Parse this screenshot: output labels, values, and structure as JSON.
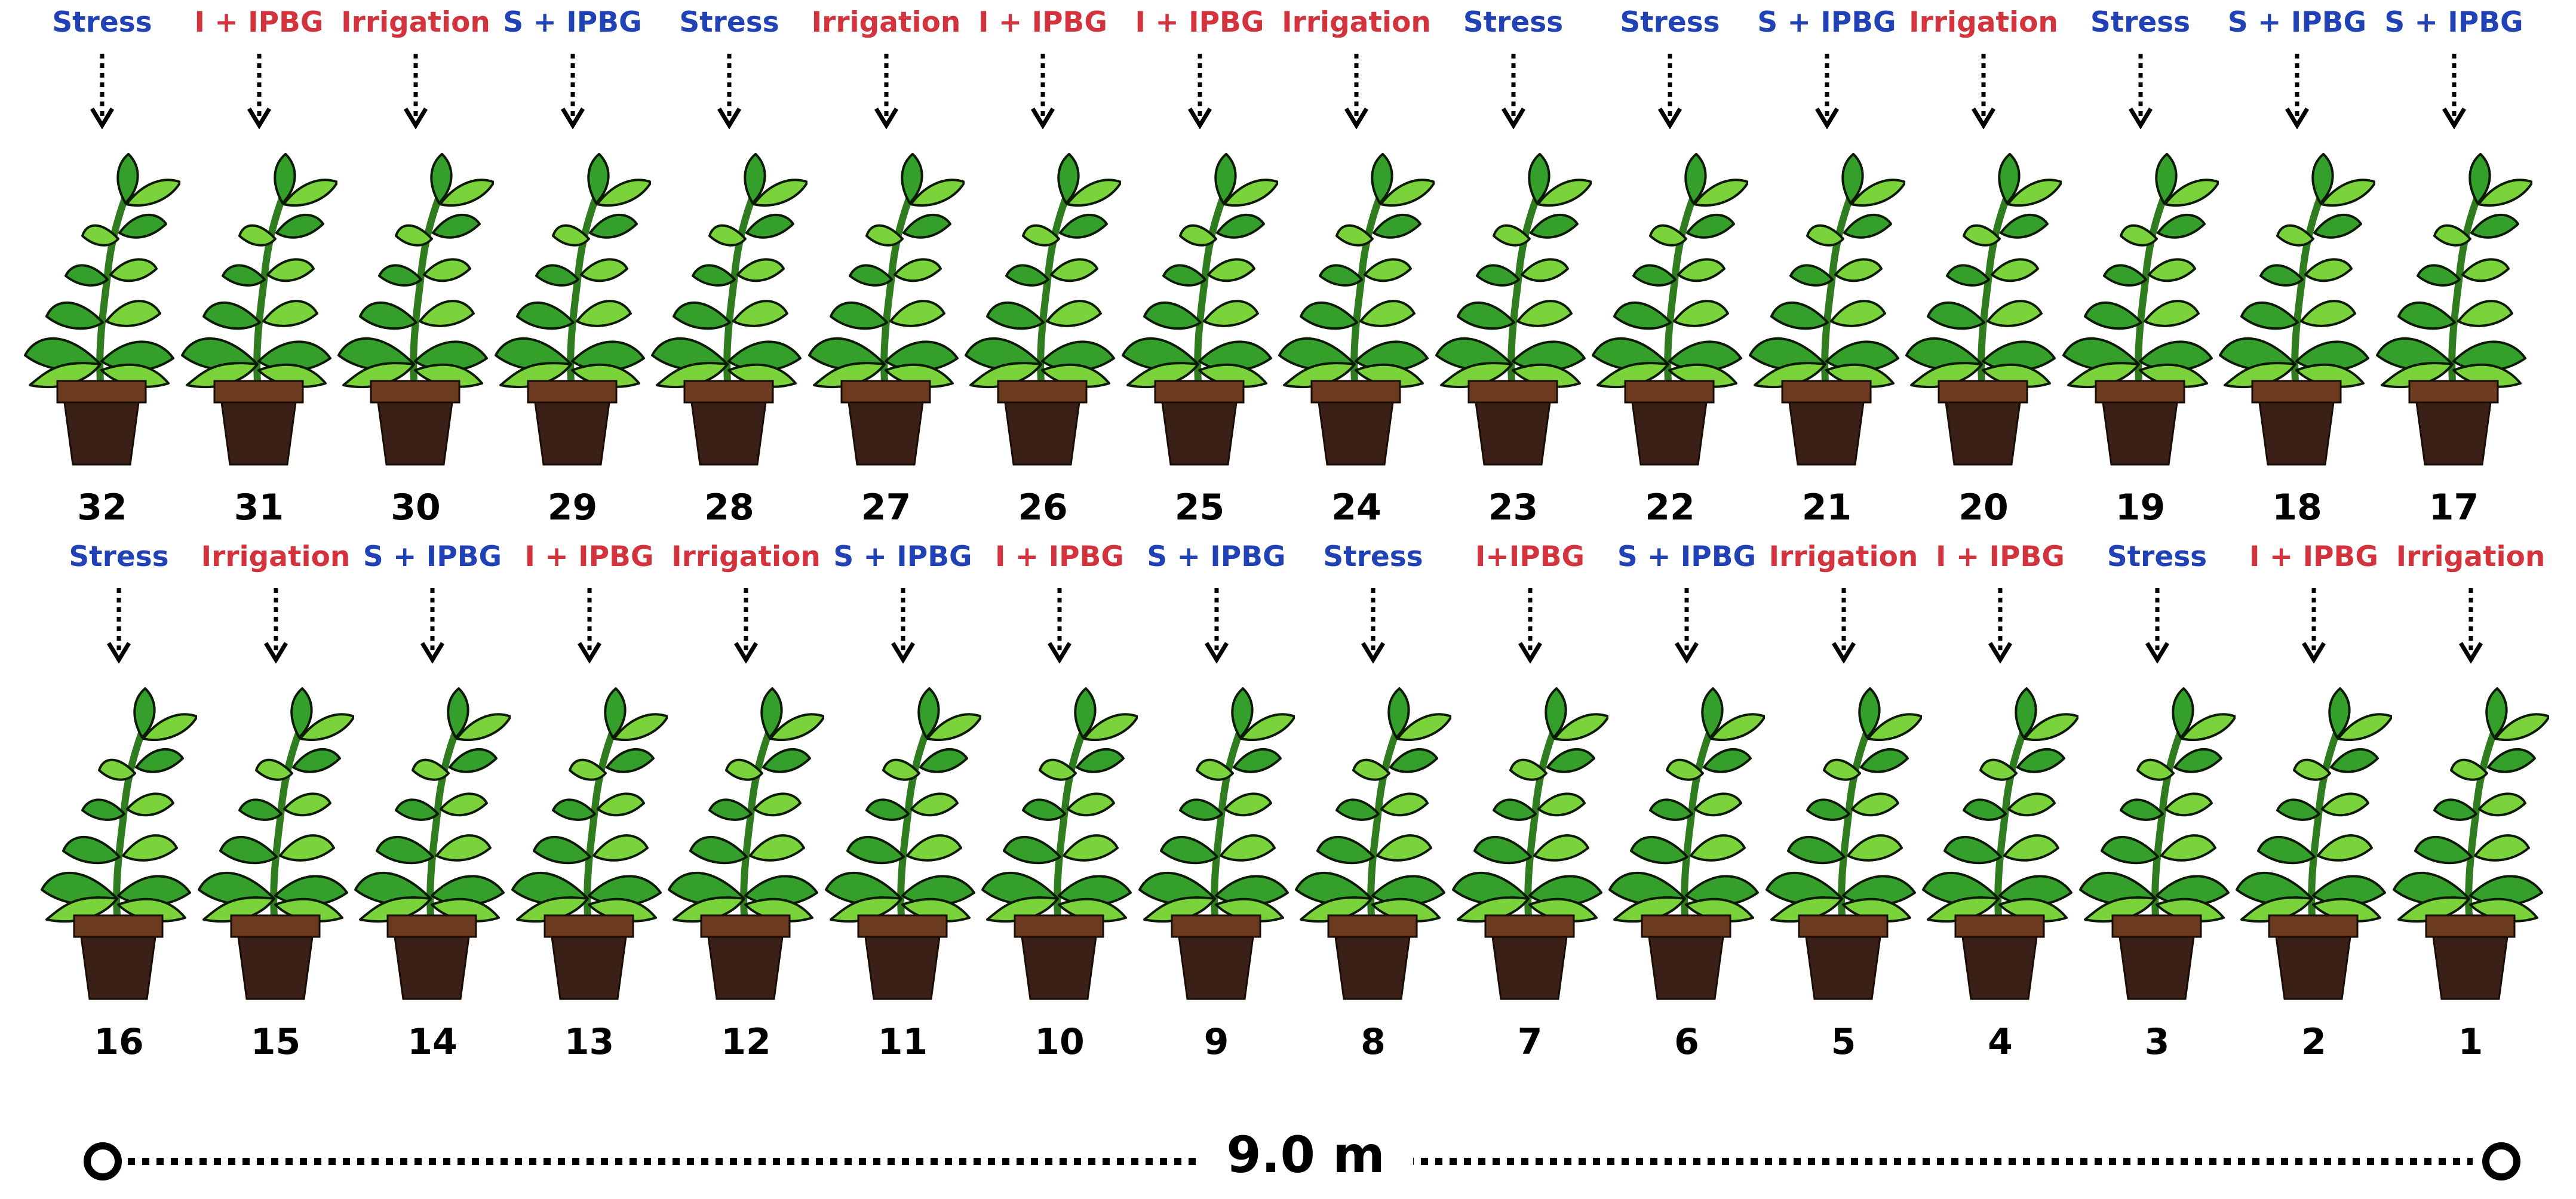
{
  "colors": {
    "stress": "#2142b5",
    "irrigation": "#d2333c",
    "stress_ipbg": "#2142b5",
    "irrigation_ipbg": "#d2333c",
    "leaf_light": "#7ad33a",
    "leaf_dark": "#34a02b",
    "pot_rim": "#6b3a1f",
    "pot_body": "#3a2016"
  },
  "icons": {
    "plant": "potted-plant-icon",
    "arrow": "dotted-down-arrow-icon"
  },
  "rows": [
    {
      "name": "top-row",
      "pots": [
        {
          "number": "32",
          "label": "Stress",
          "kind": "stress"
        },
        {
          "number": "31",
          "label": "I + IPBG",
          "kind": "irrigation_ipbg"
        },
        {
          "number": "30",
          "label": "Irrigation",
          "kind": "irrigation"
        },
        {
          "number": "29",
          "label": "S + IPBG",
          "kind": "stress_ipbg"
        },
        {
          "number": "28",
          "label": "Stress",
          "kind": "stress"
        },
        {
          "number": "27",
          "label": "Irrigation",
          "kind": "irrigation"
        },
        {
          "number": "26",
          "label": "I + IPBG",
          "kind": "irrigation_ipbg"
        },
        {
          "number": "25",
          "label": "I + IPBG",
          "kind": "irrigation_ipbg"
        },
        {
          "number": "24",
          "label": "Irrigation",
          "kind": "irrigation"
        },
        {
          "number": "23",
          "label": "Stress",
          "kind": "stress"
        },
        {
          "number": "22",
          "label": "Stress",
          "kind": "stress"
        },
        {
          "number": "21",
          "label": "S + IPBG",
          "kind": "stress_ipbg"
        },
        {
          "number": "20",
          "label": "Irrigation",
          "kind": "irrigation"
        },
        {
          "number": "19",
          "label": "Stress",
          "kind": "stress"
        },
        {
          "number": "18",
          "label": "S + IPBG",
          "kind": "stress_ipbg"
        },
        {
          "number": "17",
          "label": "S + IPBG",
          "kind": "stress_ipbg"
        }
      ]
    },
    {
      "name": "bottom-row",
      "pots": [
        {
          "number": "16",
          "label": "Stress",
          "kind": "stress"
        },
        {
          "number": "15",
          "label": "Irrigation",
          "kind": "irrigation"
        },
        {
          "number": "14",
          "label": "S + IPBG",
          "kind": "stress_ipbg"
        },
        {
          "number": "13",
          "label": "I + IPBG",
          "kind": "irrigation_ipbg"
        },
        {
          "number": "12",
          "label": "Irrigation",
          "kind": "irrigation"
        },
        {
          "number": "11",
          "label": "S + IPBG",
          "kind": "stress_ipbg"
        },
        {
          "number": "10",
          "label": "I + IPBG",
          "kind": "irrigation_ipbg"
        },
        {
          "number": "9",
          "label": "S + IPBG",
          "kind": "stress_ipbg"
        },
        {
          "number": "8",
          "label": "Stress",
          "kind": "stress"
        },
        {
          "number": "7",
          "label": "I+IPBG",
          "kind": "irrigation_ipbg"
        },
        {
          "number": "6",
          "label": "S + IPBG",
          "kind": "stress_ipbg"
        },
        {
          "number": "5",
          "label": "Irrigation",
          "kind": "irrigation"
        },
        {
          "number": "4",
          "label": "I + IPBG",
          "kind": "irrigation_ipbg"
        },
        {
          "number": "3",
          "label": "Stress",
          "kind": "stress"
        },
        {
          "number": "2",
          "label": "I + IPBG",
          "kind": "irrigation_ipbg"
        },
        {
          "number": "1",
          "label": "Irrigation",
          "kind": "irrigation"
        }
      ]
    }
  ],
  "scale": {
    "label": "9.0 m"
  }
}
